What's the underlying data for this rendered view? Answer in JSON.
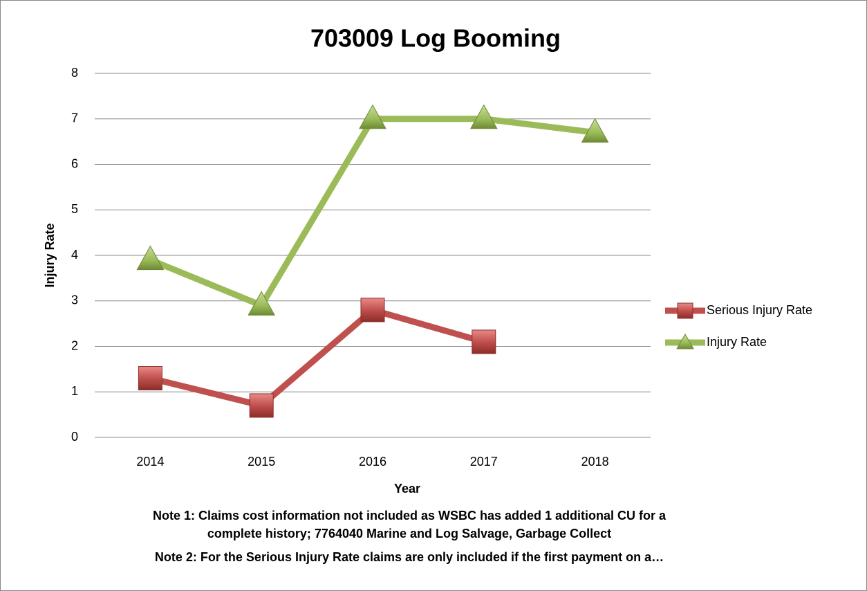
{
  "chart_data": {
    "type": "line",
    "title": "703009 Log Booming",
    "categories": [
      "2014",
      "2015",
      "2016",
      "2017",
      "2018"
    ],
    "series": [
      {
        "name": "Serious Injury Rate",
        "color": "#c0504d",
        "marker": "square",
        "values": [
          1.3,
          0.7,
          2.8,
          2.1,
          null
        ]
      },
      {
        "name": "Injury Rate",
        "color": "#9bbb59",
        "marker": "triangle",
        "values": [
          3.9,
          2.9,
          7.0,
          7.0,
          6.7
        ]
      }
    ],
    "xlabel": "Year",
    "ylabel": "Injury Rate",
    "ylim": [
      0,
      8
    ],
    "yticks": [
      0,
      1,
      2,
      3,
      4,
      5,
      6,
      7,
      8
    ],
    "grid": true,
    "legend": "right",
    "notes": [
      "Note 1:  Claims cost information not included as WSBC has added 1 additional CU for a",
      "complete history; 7764040 Marine and Log Salvage, Garbage Collect",
      "Note 2:  For the Serious Injury Rate claims are only included if the first payment on a…"
    ]
  }
}
